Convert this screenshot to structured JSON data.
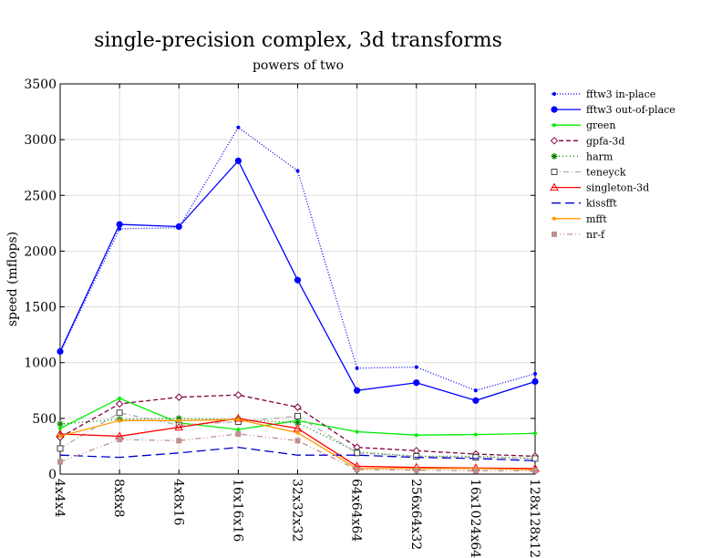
{
  "chart_data": {
    "type": "line",
    "title": "single-precision complex, 3d transforms",
    "subtitle": "powers of two",
    "xlabel": "",
    "ylabel": "speed (mflops)",
    "ylim": [
      0,
      3500
    ],
    "yticks": [
      0,
      500,
      1000,
      1500,
      2000,
      2500,
      3000,
      3500
    ],
    "categories": [
      "4x4x4",
      "8x8x8",
      "4x8x16",
      "16x16x16",
      "32x32x32",
      "64x64x64",
      "256x64x32",
      "16x1024x64",
      "128x128x128"
    ],
    "grid": true,
    "legend_position": "right",
    "series": [
      {
        "name": "fftw3 in-place",
        "color": "#0000ff",
        "dash": "1,2",
        "marker": "dot-small",
        "values": [
          1090,
          2200,
          2210,
          3110,
          2720,
          950,
          960,
          750,
          900
        ]
      },
      {
        "name": "fftw3 out-of-place",
        "color": "#0000ff",
        "dash": "",
        "marker": "dot-large",
        "values": [
          1100,
          2240,
          2220,
          2810,
          1740,
          750,
          820,
          660,
          830
        ]
      },
      {
        "name": "green",
        "color": "#00ee00",
        "dash": "",
        "marker": "dot-small",
        "values": [
          410,
          680,
          460,
          400,
          480,
          380,
          350,
          355,
          365
        ]
      },
      {
        "name": "gpfa-3d",
        "color": "#800040",
        "dash": "5,3",
        "marker": "diamond",
        "values": [
          330,
          630,
          690,
          710,
          600,
          240,
          210,
          180,
          160
        ]
      },
      {
        "name": "harm",
        "color": "#008000",
        "dash": "1,3",
        "marker": "asterisk",
        "values": [
          450,
          490,
          500,
          490,
          460,
          200,
          160,
          160,
          140
        ]
      },
      {
        "name": "teneyck",
        "color": "#aaaaaa",
        "dash": "6,3,1,3",
        "marker": "square",
        "values": [
          230,
          550,
          440,
          470,
          520,
          190,
          160,
          150,
          140
        ]
      },
      {
        "name": "singleton-3d",
        "color": "#ff0000",
        "dash": "",
        "marker": "triangle",
        "values": [
          360,
          340,
          420,
          500,
          410,
          70,
          60,
          55,
          50
        ]
      },
      {
        "name": "kissfft",
        "color": "#0000cc",
        "dash": "10,5",
        "marker": "none",
        "values": [
          170,
          150,
          190,
          240,
          170,
          170,
          150,
          140,
          120
        ]
      },
      {
        "name": "mfft",
        "color": "#ff9900",
        "dash": "",
        "marker": "dot-small",
        "values": [
          340,
          480,
          480,
          490,
          370,
          50,
          50,
          50,
          40
        ]
      },
      {
        "name": "nr-f",
        "color": "#c09090",
        "dash": "6,3,1,3,1,3",
        "marker": "square-filled",
        "values": [
          110,
          310,
          300,
          360,
          300,
          40,
          35,
          30,
          30
        ]
      }
    ]
  }
}
